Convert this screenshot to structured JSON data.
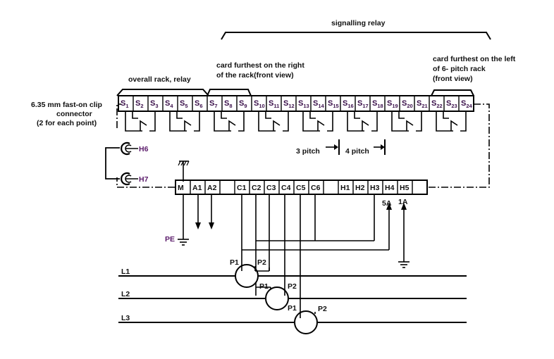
{
  "header": {
    "signalling_relay": "signalling relay"
  },
  "annotations": {
    "overall_rack": "overall rack, relay",
    "card_right_line1": "card furthest on the right",
    "card_right_line2": "of the rack(front view)",
    "card_left_line1": "card furthest on the left",
    "card_left_line2": "of 6- pitch rack",
    "card_left_line3": "(front view)",
    "connector_line1": "6.35 mm fast-on clip",
    "connector_line2": "connector",
    "connector_line3": "(2 for each point)",
    "pitch3": "3 pitch",
    "pitch4": "4 pitch"
  },
  "slots": [
    {
      "id": "S1",
      "letter": "S",
      "num": "1"
    },
    {
      "id": "S2",
      "letter": "S",
      "num": "2"
    },
    {
      "id": "S3",
      "letter": "S",
      "num": "3"
    },
    {
      "id": "S4",
      "letter": "S",
      "num": "4"
    },
    {
      "id": "S5",
      "letter": "S",
      "num": "5"
    },
    {
      "id": "S6",
      "letter": "S",
      "num": "6"
    },
    {
      "id": "S7",
      "letter": "S",
      "num": "7"
    },
    {
      "id": "S8",
      "letter": "S",
      "num": "8"
    },
    {
      "id": "S9",
      "letter": "S",
      "num": "9"
    },
    {
      "id": "S10",
      "letter": "S",
      "num": "10"
    },
    {
      "id": "S11",
      "letter": "S",
      "num": "11"
    },
    {
      "id": "S12",
      "letter": "S",
      "num": "12"
    },
    {
      "id": "S13",
      "letter": "S",
      "num": "13"
    },
    {
      "id": "S14",
      "letter": "S",
      "num": "14"
    },
    {
      "id": "S15",
      "letter": "S",
      "num": "15"
    },
    {
      "id": "S16",
      "letter": "S",
      "num": "16"
    },
    {
      "id": "S17",
      "letter": "S",
      "num": "17"
    },
    {
      "id": "S18",
      "letter": "S",
      "num": "18"
    },
    {
      "id": "S19",
      "letter": "S",
      "num": "19"
    },
    {
      "id": "S20",
      "letter": "S",
      "num": "20"
    },
    {
      "id": "S21",
      "letter": "S",
      "num": "21"
    },
    {
      "id": "S22",
      "letter": "S",
      "num": "22"
    },
    {
      "id": "S23",
      "letter": "S",
      "num": "23"
    },
    {
      "id": "S24",
      "letter": "S",
      "num": "24"
    }
  ],
  "connectors": {
    "h6": "H6",
    "h7": "H7"
  },
  "terminals": [
    "M",
    "A1",
    "A2",
    "",
    "C1",
    "C2",
    "C3",
    "C4",
    "C5",
    "C6",
    "",
    "H1",
    "H2",
    "H3",
    "H4",
    "H5"
  ],
  "ratings": {
    "r5a": "5A",
    "r1a": "1A"
  },
  "earth": {
    "pe": "PE"
  },
  "ct_labels": {
    "p1": "P1",
    "p2": "P2"
  },
  "lines": {
    "l1": "L1",
    "l2": "L2",
    "l3": "L3"
  },
  "colors": {
    "ink": "#000000",
    "accent": "#5a1a6a",
    "background": "#ffffff"
  }
}
